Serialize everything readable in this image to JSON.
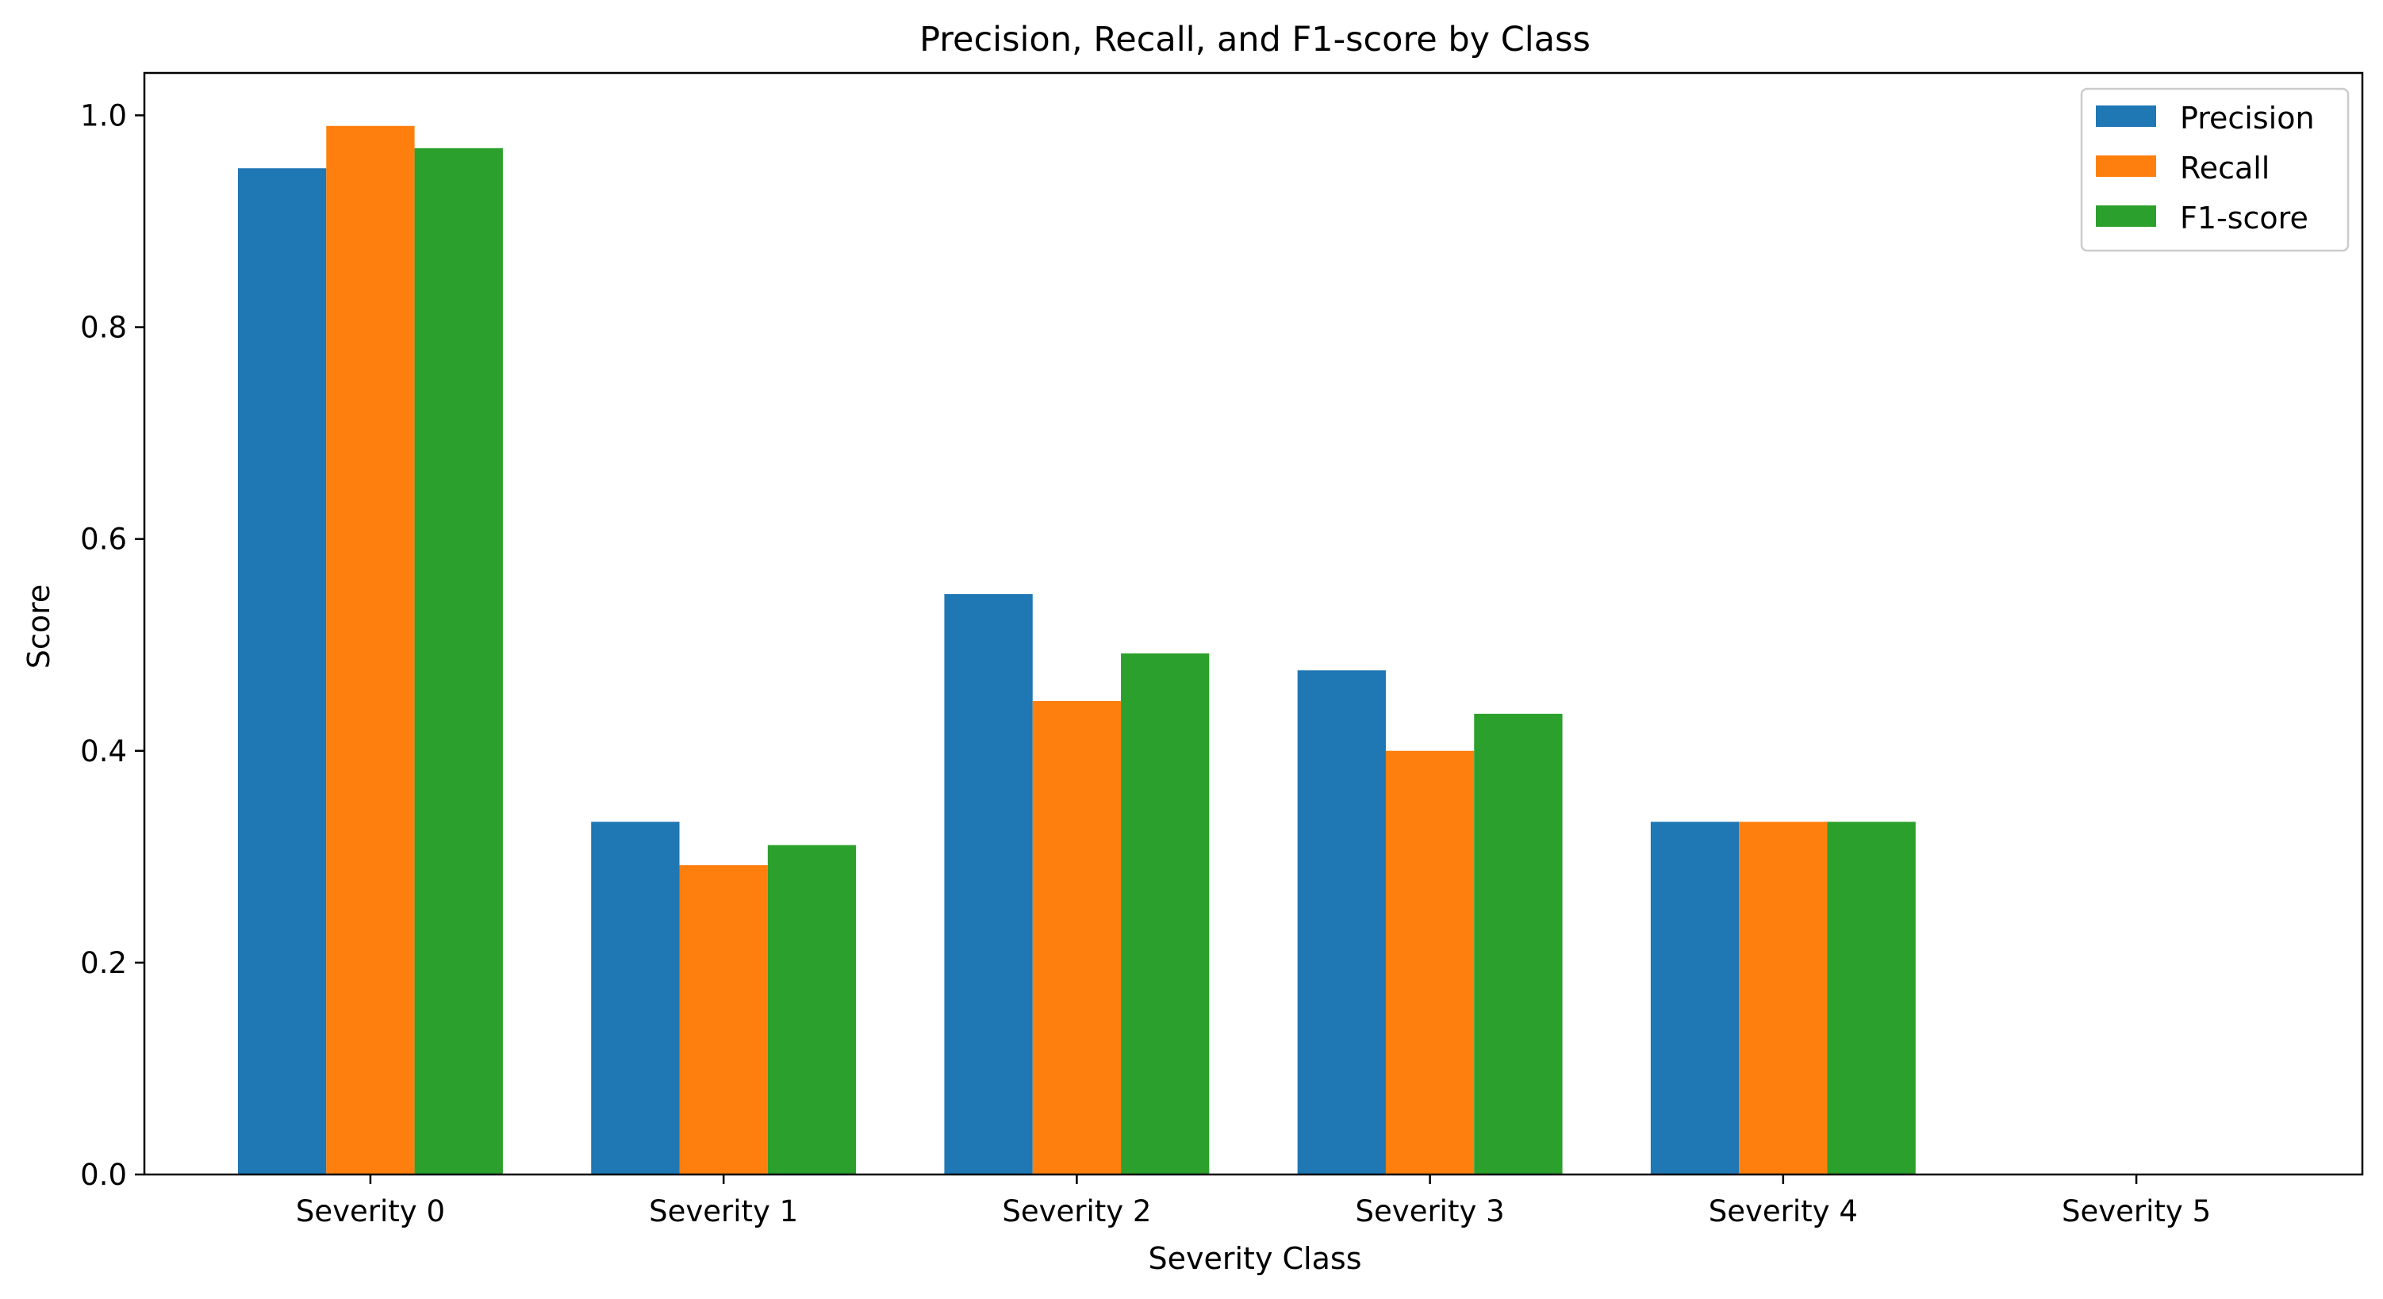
{
  "chart_data": {
    "type": "bar",
    "title": "Precision, Recall, and F1-score by Class",
    "xlabel": "Severity Class",
    "ylabel": "Score",
    "categories": [
      "Severity 0",
      "Severity 1",
      "Severity 2",
      "Severity 3",
      "Severity 4",
      "Severity 5"
    ],
    "series": [
      {
        "name": "Precision",
        "color": "#1f77b4",
        "values": [
          0.95,
          0.333,
          0.548,
          0.476,
          0.333,
          0.0
        ]
      },
      {
        "name": "Recall",
        "color": "#ff7f0e",
        "values": [
          0.99,
          0.292,
          0.447,
          0.4,
          0.333,
          0.0
        ]
      },
      {
        "name": "F1-score",
        "color": "#2ca02c",
        "values": [
          0.969,
          0.311,
          0.492,
          0.435,
          0.333,
          0.0
        ]
      }
    ],
    "ylim": [
      0,
      1.04
    ],
    "yticks": [
      "0.0",
      "0.2",
      "0.4",
      "0.6",
      "0.8",
      "1.0"
    ],
    "grid": false,
    "legend_position": "top-right"
  }
}
